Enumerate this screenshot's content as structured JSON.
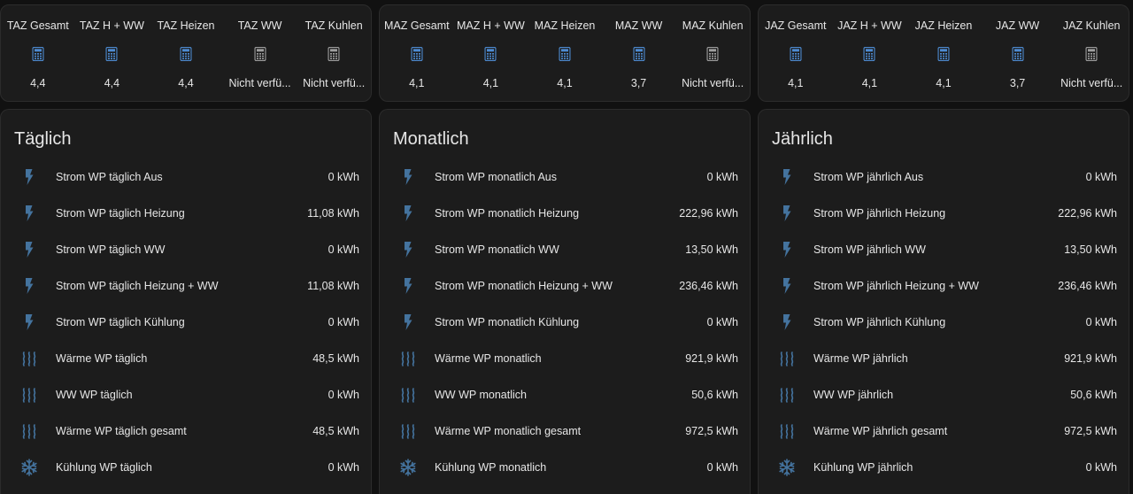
{
  "colors": {
    "icon_blue": "#44739e",
    "calc_blue": "#4d8ad0",
    "calc_gray": "#9e9e9e"
  },
  "stat_cards": [
    {
      "items": [
        {
          "label": "TAZ Gesamt",
          "value": "4,4",
          "icon": "calculator-icon",
          "active": true
        },
        {
          "label": "TAZ H + WW",
          "value": "4,4",
          "icon": "calculator-icon",
          "active": true
        },
        {
          "label": "TAZ Heizen",
          "value": "4,4",
          "icon": "calculator-icon",
          "active": true
        },
        {
          "label": "TAZ WW",
          "value": "Nicht verfü...",
          "icon": "calculator-icon",
          "active": false
        },
        {
          "label": "TAZ Kuhlen",
          "value": "Nicht verfü...",
          "icon": "calculator-icon",
          "active": false
        }
      ]
    },
    {
      "items": [
        {
          "label": "MAZ Gesamt",
          "value": "4,1",
          "icon": "calculator-icon",
          "active": true
        },
        {
          "label": "MAZ H + WW",
          "value": "4,1",
          "icon": "calculator-icon",
          "active": true
        },
        {
          "label": "MAZ Heizen",
          "value": "4,1",
          "icon": "calculator-icon",
          "active": true
        },
        {
          "label": "MAZ WW",
          "value": "3,7",
          "icon": "calculator-icon",
          "active": true
        },
        {
          "label": "MAZ Kuhlen",
          "value": "Nicht verfü...",
          "icon": "calculator-icon",
          "active": false
        }
      ]
    },
    {
      "items": [
        {
          "label": "JAZ Gesamt",
          "value": "4,1",
          "icon": "calculator-icon",
          "active": true
        },
        {
          "label": "JAZ H + WW",
          "value": "4,1",
          "icon": "calculator-icon",
          "active": true
        },
        {
          "label": "JAZ Heizen",
          "value": "4,1",
          "icon": "calculator-icon",
          "active": true
        },
        {
          "label": "JAZ WW",
          "value": "3,7",
          "icon": "calculator-icon",
          "active": true
        },
        {
          "label": "JAZ Kuhlen",
          "value": "Nicht verfü...",
          "icon": "calculator-icon",
          "active": false
        }
      ]
    }
  ],
  "list_cards": [
    {
      "title": "Täglich",
      "entities": [
        {
          "name": "Strom WP täglich Aus",
          "value": "0 kWh",
          "icon": "lightning-bolt-icon"
        },
        {
          "name": "Strom WP täglich Heizung",
          "value": "11,08 kWh",
          "icon": "lightning-bolt-icon"
        },
        {
          "name": "Strom WP täglich WW",
          "value": "0 kWh",
          "icon": "lightning-bolt-icon"
        },
        {
          "name": "Strom WP täglich Heizung + WW",
          "value": "11,08 kWh",
          "icon": "lightning-bolt-icon"
        },
        {
          "name": "Strom WP täglich Kühlung",
          "value": "0 kWh",
          "icon": "lightning-bolt-icon"
        },
        {
          "name": "Wärme WP täglich",
          "value": "48,5 kWh",
          "icon": "heat-waves-icon"
        },
        {
          "name": "WW WP täglich",
          "value": "0 kWh",
          "icon": "heat-waves-icon"
        },
        {
          "name": "Wärme WP täglich gesamt",
          "value": "48,5 kWh",
          "icon": "heat-waves-icon"
        },
        {
          "name": "Kühlung WP täglich",
          "value": "0 kWh",
          "icon": "snowflake-icon"
        }
      ]
    },
    {
      "title": "Monatlich",
      "entities": [
        {
          "name": "Strom WP monatlich Aus",
          "value": "0 kWh",
          "icon": "lightning-bolt-icon"
        },
        {
          "name": "Strom WP monatlich Heizung",
          "value": "222,96 kWh",
          "icon": "lightning-bolt-icon"
        },
        {
          "name": "Strom WP monatlich WW",
          "value": "13,50 kWh",
          "icon": "lightning-bolt-icon"
        },
        {
          "name": "Strom WP monatlich Heizung + WW",
          "value": "236,46 kWh",
          "icon": "lightning-bolt-icon"
        },
        {
          "name": "Strom WP monatlich Kühlung",
          "value": "0 kWh",
          "icon": "lightning-bolt-icon"
        },
        {
          "name": "Wärme WP monatlich",
          "value": "921,9 kWh",
          "icon": "heat-waves-icon"
        },
        {
          "name": "WW WP monatlich",
          "value": "50,6 kWh",
          "icon": "heat-waves-icon"
        },
        {
          "name": "Wärme WP monatlich gesamt",
          "value": "972,5 kWh",
          "icon": "heat-waves-icon"
        },
        {
          "name": "Kühlung WP monatlich",
          "value": "0 kWh",
          "icon": "snowflake-icon"
        }
      ]
    },
    {
      "title": "Jährlich",
      "entities": [
        {
          "name": "Strom WP jährlich Aus",
          "value": "0 kWh",
          "icon": "lightning-bolt-icon"
        },
        {
          "name": "Strom WP jährlich Heizung",
          "value": "222,96 kWh",
          "icon": "lightning-bolt-icon"
        },
        {
          "name": "Strom WP jährlich WW",
          "value": "13,50 kWh",
          "icon": "lightning-bolt-icon"
        },
        {
          "name": "Strom WP jährlich Heizung + WW",
          "value": "236,46 kWh",
          "icon": "lightning-bolt-icon"
        },
        {
          "name": "Strom WP jährlich Kühlung",
          "value": "0 kWh",
          "icon": "lightning-bolt-icon"
        },
        {
          "name": "Wärme WP jährlich",
          "value": "921,9 kWh",
          "icon": "heat-waves-icon"
        },
        {
          "name": "WW WP jährlich",
          "value": "50,6 kWh",
          "icon": "heat-waves-icon"
        },
        {
          "name": "Wärme WP jährlich gesamt",
          "value": "972,5 kWh",
          "icon": "heat-waves-icon"
        },
        {
          "name": "Kühlung WP jährlich",
          "value": "0 kWh",
          "icon": "snowflake-icon"
        }
      ]
    }
  ]
}
